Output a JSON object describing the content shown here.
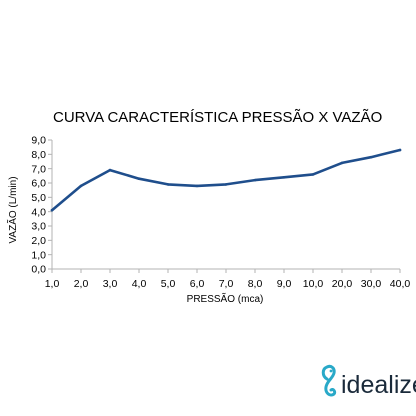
{
  "chart_data": {
    "type": "line",
    "title": "CURVA CARACTERÍSTICA PRESSÃO X VAZÃO",
    "xlabel": "PRESSÃO (mca)",
    "ylabel": "VAZÃO (L/min)",
    "categories": [
      "1,0",
      "2,0",
      "3,0",
      "4,0",
      "5,0",
      "6,0",
      "7,0",
      "8,0",
      "9,0",
      "10,0",
      "20,0",
      "30,0",
      "40,0"
    ],
    "y_ticks": [
      "0,0",
      "1,0",
      "2,0",
      "3,0",
      "4,0",
      "5,0",
      "6,0",
      "7,0",
      "8,0",
      "9,0"
    ],
    "ylim": [
      0,
      9
    ],
    "grid": false,
    "series": [
      {
        "color": "#1f4e8c",
        "values": [
          4.1,
          5.8,
          6.9,
          6.3,
          5.9,
          5.8,
          5.9,
          6.2,
          6.4,
          6.6,
          7.4,
          7.8,
          8.3
        ]
      }
    ]
  },
  "brand": {
    "name": "idealize",
    "text_color": "#1a2a3a",
    "icon_color": "#29a9c8",
    "icon": "seahorse-logo-icon"
  }
}
